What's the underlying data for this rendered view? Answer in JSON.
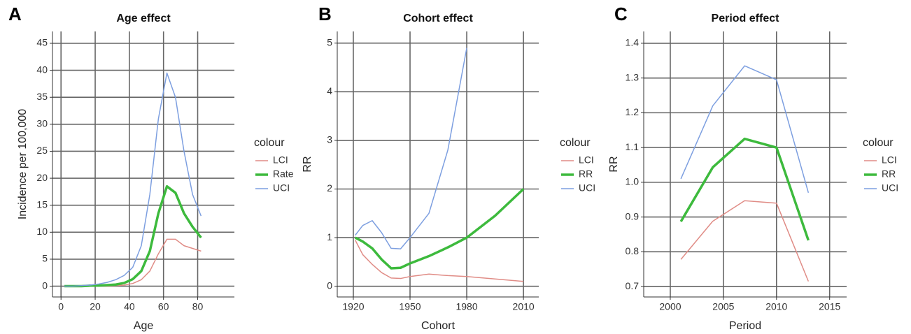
{
  "chart_data": [
    {
      "type": "line",
      "panel_label": "A",
      "title": "Age effect",
      "xlabel": "Age",
      "ylabel": "Incidence per 100,000",
      "legend_title": "colour",
      "x": [
        2,
        7,
        12,
        17,
        22,
        27,
        32,
        37,
        42,
        47,
        52,
        57,
        62,
        67,
        72,
        77,
        82
      ],
      "series": [
        {
          "name": "LCI",
          "color": "#e08c86",
          "width": 1.5,
          "values": [
            0,
            0,
            0,
            0,
            0,
            0,
            0.1,
            0.2,
            0.5,
            1.2,
            2.8,
            6,
            8.7,
            8.7,
            7.5,
            7,
            6.5
          ]
        },
        {
          "name": "Rate",
          "color": "#3dba3d",
          "width": 3.5,
          "values": [
            0,
            0,
            0,
            0.1,
            0.1,
            0.2,
            0.3,
            0.6,
            1.3,
            2.8,
            6.5,
            13.5,
            18.5,
            17.3,
            13.5,
            11,
            9
          ]
        },
        {
          "name": "UCI",
          "color": "#7d9fe0",
          "width": 1.5,
          "values": [
            0,
            0,
            0.1,
            0.2,
            0.4,
            0.7,
            1.2,
            2,
            3.5,
            7.5,
            17,
            31,
            39.5,
            35,
            25,
            17,
            13
          ]
        }
      ],
      "xlim": [
        -5,
        101.5
      ],
      "ylim": [
        -2,
        47.2
      ],
      "xticks": [
        0,
        20,
        40,
        60,
        80
      ],
      "yticks": [
        0,
        5,
        10,
        15,
        20,
        25,
        30,
        35,
        40,
        45
      ],
      "grid": true
    },
    {
      "type": "line",
      "panel_label": "B",
      "title": "Cohort effect",
      "xlabel": "Cohort",
      "ylabel": "RR",
      "legend_title": "colour",
      "x": [
        1921,
        1925,
        1930,
        1935,
        1940,
        1945,
        1950,
        1960,
        1970,
        1980,
        1995,
        2010
      ],
      "series": [
        {
          "name": "LCI",
          "color": "#e08c86",
          "width": 1.5,
          "values": [
            0.95,
            0.65,
            0.45,
            0.28,
            0.17,
            0.16,
            0.2,
            0.25,
            0.22,
            0.2,
            0.15,
            0.1
          ]
        },
        {
          "name": "RR",
          "color": "#3dba3d",
          "width": 3.5,
          "values": [
            1.0,
            0.92,
            0.78,
            0.55,
            0.37,
            0.38,
            0.47,
            0.62,
            0.8,
            1.0,
            1.45,
            2.0
          ]
        },
        {
          "name": "UCI",
          "color": "#7d9fe0",
          "width": 1.5,
          "values": [
            1.05,
            1.25,
            1.35,
            1.1,
            0.78,
            0.77,
            1.0,
            1.5,
            2.8,
            4.9,
            null,
            null
          ]
        }
      ],
      "xlim": [
        1911.5,
        2018.1
      ],
      "ylim": [
        -0.22,
        5.24
      ],
      "xticks": [
        1920,
        1950,
        1980,
        2010
      ],
      "yticks": [
        0,
        1,
        2,
        3,
        4,
        5
      ],
      "grid": true
    },
    {
      "type": "line",
      "panel_label": "C",
      "title": "Period effect",
      "xlabel": "Period",
      "ylabel": "RR",
      "legend_title": "colour",
      "x": [
        2001,
        2004,
        2007,
        2010,
        2013
      ],
      "series": [
        {
          "name": "LCI",
          "color": "#e08c86",
          "width": 1.5,
          "values": [
            0.778,
            0.888,
            0.947,
            0.94,
            0.715
          ]
        },
        {
          "name": "RR",
          "color": "#3dba3d",
          "width": 3.5,
          "values": [
            0.887,
            1.043,
            1.125,
            1.1,
            0.833
          ]
        },
        {
          "name": "UCI",
          "color": "#7d9fe0",
          "width": 1.5,
          "values": [
            1.01,
            1.22,
            1.335,
            1.295,
            0.97
          ]
        }
      ],
      "xlim": [
        1997.5,
        2016.6
      ],
      "ylim": [
        0.67,
        1.434
      ],
      "xticks": [
        2000,
        2005,
        2010,
        2015
      ],
      "yticks": [
        0.7,
        0.8,
        0.9,
        {
          "value": 1,
          "label": "1.0"
        },
        1.1,
        1.2,
        1.3,
        1.4
      ],
      "grid": true
    }
  ]
}
